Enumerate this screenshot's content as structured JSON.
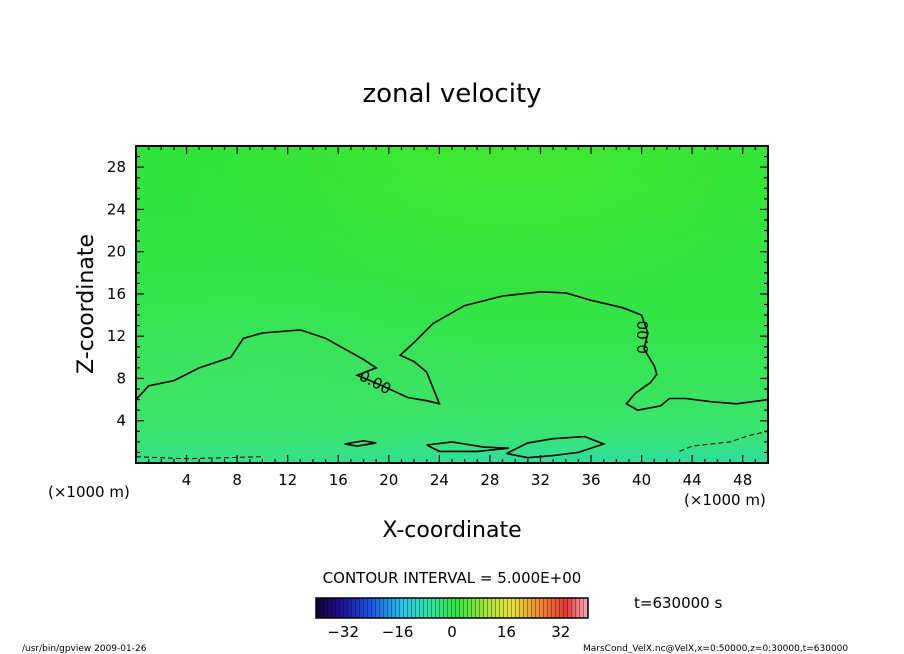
{
  "chart_data": {
    "type": "contour",
    "title": "zonal velocity",
    "xlabel": "X-coordinate",
    "ylabel": "Z-coordinate",
    "x_unit": "(×1000 m)",
    "y_unit": "(×1000 m)",
    "xlim": [
      0,
      50
    ],
    "ylim": [
      0,
      30
    ],
    "xticks": [
      4,
      8,
      12,
      16,
      20,
      24,
      28,
      32,
      36,
      40,
      44,
      48
    ],
    "yticks": [
      4,
      8,
      12,
      16,
      20,
      24,
      28
    ],
    "contour_interval": "CONTOUR INTERVAL = 5.000E+00",
    "contour_label": "0.00",
    "time": "t=630000 s",
    "colorbar": {
      "min": -40,
      "max": 40,
      "ticks": [
        -32,
        -16,
        0,
        16,
        32
      ]
    },
    "zero_contour_main": [
      [
        0,
        6
      ],
      [
        1,
        7.3
      ],
      [
        3,
        7.8
      ],
      [
        5,
        9
      ],
      [
        7.5,
        10
      ],
      [
        8.5,
        11.8
      ],
      [
        10,
        12.3
      ],
      [
        13,
        12.6
      ],
      [
        15,
        11.8
      ],
      [
        16.5,
        10.8
      ],
      [
        18,
        9.8
      ],
      [
        19,
        9.0
      ],
      [
        17.5,
        8.3
      ],
      [
        19.5,
        7.3
      ],
      [
        21.5,
        6.2
      ],
      [
        23,
        5.9
      ],
      [
        24,
        5.6
      ],
      [
        23.6,
        6.8
      ],
      [
        23,
        8.6
      ],
      [
        22,
        9.6
      ],
      [
        20.9,
        10.2
      ],
      [
        22,
        11.4
      ],
      [
        23.5,
        13.2
      ],
      [
        26,
        14.9
      ],
      [
        29,
        15.8
      ],
      [
        32,
        16.2
      ],
      [
        34,
        16.1
      ],
      [
        36,
        15.4
      ],
      [
        38.5,
        14.7
      ],
      [
        40,
        14
      ],
      [
        40.5,
        12.3
      ],
      [
        40.2,
        10.8
      ],
      [
        41,
        9.2
      ],
      [
        41.2,
        8.4
      ],
      [
        40.7,
        7.6
      ],
      [
        39.5,
        6.6
      ],
      [
        38.8,
        5.6
      ],
      [
        39.7,
        5.0
      ],
      [
        41.5,
        5.4
      ],
      [
        42.2,
        6.1
      ],
      [
        43.5,
        6.1
      ],
      [
        45.5,
        5.8
      ],
      [
        47.5,
        5.6
      ],
      [
        50,
        6.0
      ]
    ],
    "zero_contour_low_a": [
      [
        16.5,
        1.8
      ],
      [
        18,
        2.1
      ],
      [
        19,
        1.9
      ],
      [
        17.5,
        1.6
      ],
      [
        16.5,
        1.8
      ]
    ],
    "zero_contour_low_b": [
      [
        23,
        1.7
      ],
      [
        25,
        2.0
      ],
      [
        27.5,
        1.5
      ],
      [
        29.5,
        1.4
      ],
      [
        27,
        1.1
      ],
      [
        24,
        1.1
      ],
      [
        23,
        1.7
      ]
    ],
    "zero_contour_low_c": [
      [
        29.3,
        0.9
      ],
      [
        31,
        1.9
      ],
      [
        33,
        2.3
      ],
      [
        35.5,
        2.5
      ],
      [
        37,
        1.8
      ],
      [
        35,
        1.0
      ],
      [
        33,
        0.7
      ],
      [
        31,
        0.5
      ],
      [
        29.3,
        0.9
      ]
    ],
    "neg_contour_low": [
      [
        0,
        0.6
      ],
      [
        2,
        0.5
      ],
      [
        4,
        0.4
      ],
      [
        7,
        0.5
      ],
      [
        10,
        0.6
      ]
    ],
    "neg_contour_right": [
      [
        43,
        1.1
      ],
      [
        44,
        1.6
      ],
      [
        45.5,
        1.8
      ],
      [
        47,
        2.0
      ],
      [
        48.5,
        2.6
      ],
      [
        50,
        3.0
      ]
    ],
    "footer_left": "/usr/bin/gpview   2009-01-26",
    "footer_right": "MarsCond_VelX.nc@VelX,x=0:50000,z=0:30000,t=630000"
  }
}
